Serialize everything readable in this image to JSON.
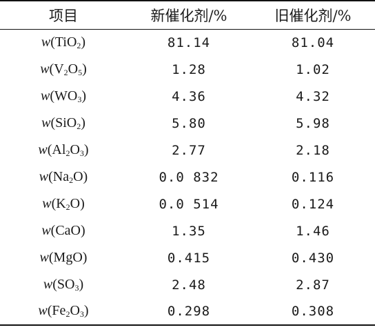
{
  "table": {
    "headers": [
      "项目",
      "新催化剂/%",
      "旧催化剂/%"
    ],
    "rows": [
      {
        "comp": [
          {
            "t": "w",
            "k": "w"
          },
          {
            "t": "(TiO"
          },
          {
            "t": "2",
            "k": "sub"
          },
          {
            "t": ")"
          }
        ],
        "new": "81.14",
        "old": "81.04"
      },
      {
        "comp": [
          {
            "t": "w",
            "k": "w"
          },
          {
            "t": "(V"
          },
          {
            "t": "2",
            "k": "sub"
          },
          {
            "t": "O"
          },
          {
            "t": "5",
            "k": "sub"
          },
          {
            "t": ")"
          }
        ],
        "new": "1.28",
        "old": "1.02"
      },
      {
        "comp": [
          {
            "t": "w",
            "k": "w"
          },
          {
            "t": "(WO"
          },
          {
            "t": "3",
            "k": "sub"
          },
          {
            "t": ")"
          }
        ],
        "new": "4.36",
        "old": "4.32"
      },
      {
        "comp": [
          {
            "t": "w",
            "k": "w"
          },
          {
            "t": "(SiO"
          },
          {
            "t": "2",
            "k": "sub"
          },
          {
            "t": ")"
          }
        ],
        "new": "5.80",
        "old": "5.98"
      },
      {
        "comp": [
          {
            "t": "w",
            "k": "w"
          },
          {
            "t": "(Al"
          },
          {
            "t": "2",
            "k": "sub"
          },
          {
            "t": "O"
          },
          {
            "t": "3",
            "k": "sub"
          },
          {
            "t": ")"
          }
        ],
        "new": "2.77",
        "old": "2.18"
      },
      {
        "comp": [
          {
            "t": "w",
            "k": "w"
          },
          {
            "t": "(Na"
          },
          {
            "t": "2",
            "k": "sub"
          },
          {
            "t": "O)"
          }
        ],
        "new": "0.0 832",
        "old": "0.116"
      },
      {
        "comp": [
          {
            "t": "w",
            "k": "w"
          },
          {
            "t": "(K"
          },
          {
            "t": "2",
            "k": "sub"
          },
          {
            "t": "O)"
          }
        ],
        "new": "0.0 514",
        "old": "0.124"
      },
      {
        "comp": [
          {
            "t": "w",
            "k": "w"
          },
          {
            "t": "(CaO)"
          }
        ],
        "new": "1.35",
        "old": "1.46"
      },
      {
        "comp": [
          {
            "t": "w",
            "k": "w"
          },
          {
            "t": "(MgO)"
          }
        ],
        "new": "0.415",
        "old": "0.430"
      },
      {
        "comp": [
          {
            "t": "w",
            "k": "w"
          },
          {
            "t": "(SO"
          },
          {
            "t": "3",
            "k": "sub"
          },
          {
            "t": ")"
          }
        ],
        "new": "2.48",
        "old": "2.87"
      },
      {
        "comp": [
          {
            "t": "w",
            "k": "w"
          },
          {
            "t": "(Fe"
          },
          {
            "t": "2",
            "k": "sub"
          },
          {
            "t": "O"
          },
          {
            "t": "3",
            "k": "sub"
          },
          {
            "t": ")"
          }
        ],
        "new": "0.298",
        "old": "0.308"
      }
    ]
  }
}
